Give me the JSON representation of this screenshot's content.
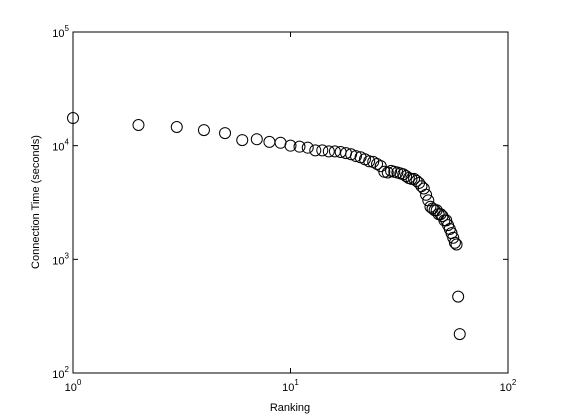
{
  "chart_data": {
    "type": "scatter",
    "xlabel": "Ranking",
    "ylabel": "Connection Time (seconds)",
    "xscale": "log",
    "yscale": "log",
    "xlim": [
      1,
      100
    ],
    "ylim": [
      100,
      100000
    ],
    "xticks": [
      {
        "value": 1,
        "label": "10^0"
      },
      {
        "value": 10,
        "label": "10^1"
      },
      {
        "value": 100,
        "label": "10^2"
      }
    ],
    "yticks": [
      {
        "value": 100,
        "label": "10^2"
      },
      {
        "value": 1000,
        "label": "10^3"
      },
      {
        "value": 10000,
        "label": "10^4"
      },
      {
        "value": 100000,
        "label": "10^5"
      }
    ],
    "color": "#000000",
    "x": [
      1,
      2,
      3,
      4,
      5,
      6,
      7,
      8,
      9,
      10,
      11,
      12,
      13,
      14,
      15,
      16,
      17,
      18,
      19,
      20,
      21,
      22,
      23,
      24,
      25,
      26,
      27,
      28,
      29,
      30,
      31,
      32,
      33,
      34,
      35,
      36,
      37,
      38,
      39,
      40,
      41,
      42,
      43,
      44,
      45,
      46,
      47,
      48,
      49,
      50,
      51,
      52,
      53,
      54,
      55,
      56,
      57,
      58,
      59,
      60
    ],
    "values": [
      17500,
      15200,
      14600,
      13700,
      12900,
      11200,
      11400,
      10800,
      10600,
      10000,
      9800,
      9600,
      9100,
      9100,
      8900,
      8900,
      8800,
      8600,
      8400,
      8100,
      7900,
      7600,
      7300,
      7200,
      6900,
      6600,
      5900,
      5800,
      6000,
      5900,
      5800,
      5700,
      5600,
      5400,
      5200,
      5100,
      5100,
      4900,
      4700,
      4400,
      4200,
      3700,
      3300,
      2900,
      2800,
      2700,
      2700,
      2500,
      2500,
      2400,
      2200,
      2200,
      2000,
      1850,
      1700,
      1550,
      1400,
      1350,
      470,
      220
    ]
  }
}
